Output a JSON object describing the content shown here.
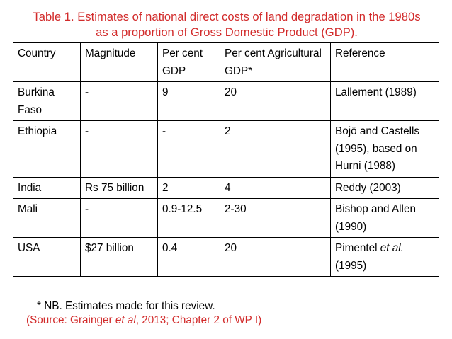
{
  "caption": {
    "line1": "Table 1. Estimates of national direct costs of land degradation in the 1980s",
    "line2": "as a proportion of Gross Domestic Product (GDP)."
  },
  "table": {
    "headers": {
      "country": "Country",
      "magnitude": "Magnitude",
      "gdp": "Per cent GDP",
      "agri_gdp": "Per cent Agricultural GDP*",
      "reference": "Reference"
    },
    "rows": [
      {
        "country": "Burkina Faso",
        "magnitude": "-",
        "gdp": "9",
        "agri_gdp": "20",
        "reference": "Lallement (1989)"
      },
      {
        "country": "Ethiopia",
        "magnitude": "-",
        "gdp": "-",
        "agri_gdp": "2",
        "reference": "Bojö and Castells (1995), based on Hurni (1988)"
      },
      {
        "country": "India",
        "magnitude": "Rs 75 billion",
        "gdp": "2",
        "agri_gdp": "4",
        "reference": "Reddy (2003)"
      },
      {
        "country": "Mali",
        "magnitude": "-",
        "gdp": "0.9-12.5",
        "agri_gdp": "2-30",
        "reference": "Bishop and Allen (1990)"
      },
      {
        "country": "USA",
        "magnitude": "$27 billion",
        "gdp": "0.4",
        "agri_gdp": "20",
        "reference_prefix": "Pimentel",
        "reference_italic": "et al.",
        "reference_suffix": "(1995)"
      }
    ]
  },
  "note": "* NB. Estimates made for this review.",
  "source": {
    "prefix": "(Source: Grainger",
    "italic": "et al",
    "suffix": ", 2013; Chapter 2 of WP I)"
  },
  "colors": {
    "caption": "#d22b2b",
    "source": "#d22b2b",
    "border": "#000000"
  }
}
